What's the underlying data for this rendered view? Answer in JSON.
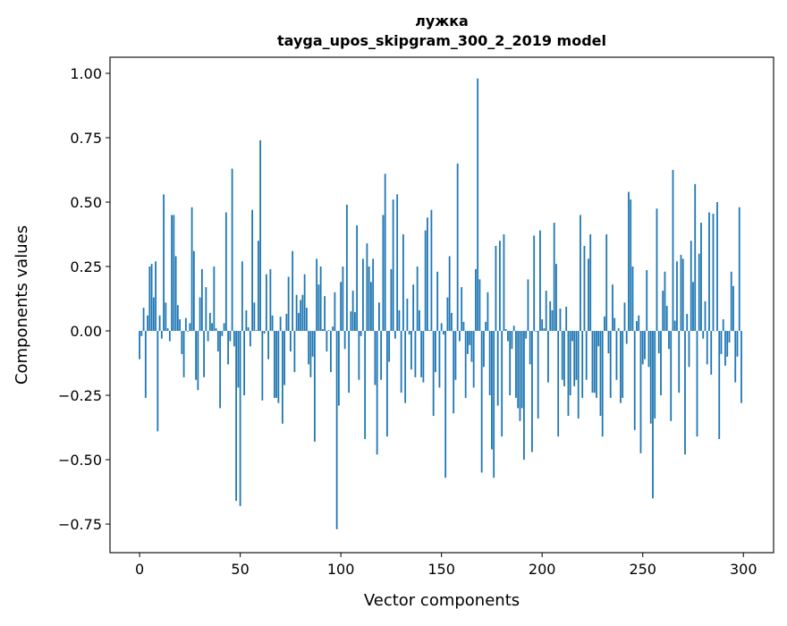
{
  "chart_data": {
    "type": "bar",
    "title": "лужка",
    "subtitle": "tayga_upos_skipgram_300_2_2019 model",
    "xlabel": "Vector components",
    "ylabel": "Components values",
    "xlim": [
      -14.7,
      315
    ],
    "ylim": [
      -0.861,
      1.0625
    ],
    "xticks": [
      0,
      50,
      100,
      150,
      200,
      250,
      300
    ],
    "xtick_labels": [
      "0",
      "50",
      "100",
      "150",
      "200",
      "250",
      "300"
    ],
    "yticks": [
      -0.75,
      -0.5,
      -0.25,
      0.0,
      0.25,
      0.5,
      0.75,
      1.0
    ],
    "ytick_labels": [
      "−0.75",
      "−0.50",
      "−0.25",
      "0.00",
      "0.25",
      "0.50",
      "0.75",
      "1.00"
    ],
    "grid": false,
    "bar_color": "#1f77b4",
    "values": [
      -0.11,
      -0.02,
      0.09,
      -0.26,
      0.06,
      0.25,
      0.26,
      0.13,
      0.27,
      -0.39,
      0.06,
      -0.03,
      0.53,
      0.11,
      0.01,
      -0.04,
      0.45,
      0.45,
      0.29,
      0.1,
      0.045,
      -0.09,
      -0.18,
      0.05,
      -0.003,
      0.03,
      0.48,
      0.31,
      -0.19,
      -0.23,
      0.13,
      0.24,
      -0.18,
      0.17,
      -0.04,
      0.07,
      0.03,
      0.25,
      0.01,
      -0.08,
      -0.3,
      -0.02,
      0.03,
      0.46,
      -0.13,
      -0.04,
      0.63,
      -0.06,
      -0.66,
      -0.22,
      -0.68,
      0.27,
      -0.25,
      0.08,
      0.014,
      -0.06,
      0.47,
      0.11,
      0.003,
      0.35,
      0.74,
      -0.27,
      -0.01,
      0.22,
      -0.11,
      0.24,
      0.06,
      -0.26,
      -0.26,
      -0.28,
      0.055,
      -0.36,
      -0.21,
      0.066,
      0.21,
      -0.08,
      0.31,
      -0.16,
      0.14,
      0.07,
      0.12,
      0.14,
      0.22,
      0.09,
      -0.13,
      -0.18,
      -0.1,
      -0.43,
      0.28,
      0.18,
      0.25,
      0.007,
      0.135,
      -0.08,
      0.003,
      -0.16,
      0.017,
      0.15,
      -0.77,
      -0.29,
      0.19,
      0.25,
      -0.07,
      0.49,
      -0.24,
      0.076,
      0.156,
      0.073,
      0.41,
      -0.19,
      -0.02,
      0.28,
      -0.42,
      0.34,
      0.25,
      0.19,
      0.28,
      -0.21,
      -0.48,
      0.11,
      -0.19,
      0.45,
      0.61,
      -0.41,
      -0.12,
      0.24,
      0.51,
      -0.03,
      0.53,
      0.08,
      -0.24,
      0.375,
      -0.28,
      0.125,
      -0.014,
      -0.15,
      0.18,
      -0.18,
      0.25,
      0.08,
      -0.18,
      -0.2,
      0.39,
      0.44,
      0.003,
      0.47,
      -0.33,
      -0.16,
      0.23,
      -0.22,
      0.03,
      -0.014,
      -0.57,
      0.13,
      0.29,
      0.07,
      -0.32,
      -0.19,
      0.65,
      -0.04,
      0.17,
      0.035,
      -0.26,
      -0.09,
      -0.055,
      -0.12,
      -0.22,
      0.24,
      0.98,
      0.2,
      -0.55,
      -0.14,
      0.035,
      0.15,
      -0.25,
      -0.46,
      -0.57,
      0.33,
      -0.29,
      0.35,
      -0.41,
      0.375,
      0.007,
      -0.04,
      -0.25,
      -0.07,
      0.02,
      -0.26,
      -0.3,
      -0.35,
      -0.3,
      -0.5,
      -0.03,
      0.2,
      -0.13,
      -0.47,
      0.37,
      -0.003,
      -0.34,
      0.39,
      0.045,
      0.01,
      0.156,
      -0.2,
      0.115,
      0.08,
      0.42,
      0.26,
      -0.41,
      0.087,
      -0.19,
      -0.215,
      0.094,
      -0.33,
      -0.25,
      -0.04,
      -0.215,
      -0.19,
      -0.34,
      0.45,
      -0.26,
      0.33,
      -0.19,
      0.28,
      0.375,
      -0.24,
      -0.24,
      -0.26,
      -0.06,
      -0.33,
      -0.41,
      0.056,
      0.375,
      -0.087,
      -0.26,
      0.18,
      0.05,
      -0.19,
      0.01,
      -0.28,
      -0.26,
      0.11,
      -0.05,
      0.54,
      0.51,
      0.25,
      -0.385,
      0.038,
      0.06,
      -0.475,
      -0.13,
      -0.11,
      0.236,
      -0.14,
      -0.36,
      -0.65,
      -0.34,
      0.475,
      -0.087,
      -0.25,
      0.156,
      0.23,
      0.097,
      -0.07,
      -0.35,
      0.625,
      0.04,
      0.27,
      -0.24,
      0.295,
      0.28,
      -0.48,
      0.066,
      -0.14,
      0.35,
      0.19,
      0.57,
      -0.41,
      0.3,
      0.42,
      -0.03,
      0.115,
      -0.13,
      0.46,
      -0.17,
      0.455,
      0.0,
      0.5,
      -0.42,
      -0.09,
      0.045,
      -0.135,
      -0.1,
      -0.045,
      0.23,
      0.174,
      -0.2,
      -0.1,
      0.48,
      -0.28
    ]
  }
}
